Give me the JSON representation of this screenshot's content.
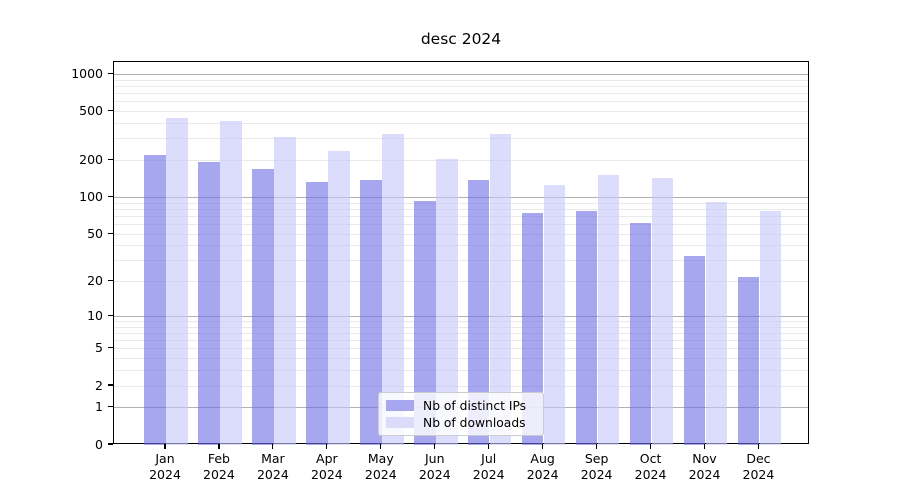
{
  "title": "desc 2024",
  "legend": {
    "items": [
      {
        "label": "Nb of distinct IPs",
        "color": "#a7a7ef"
      },
      {
        "label": "Nb of downloads",
        "color": "#dcdcfa"
      }
    ]
  },
  "chart_data": {
    "type": "bar",
    "title": "desc 2024",
    "categories": [
      "Jan",
      "Feb",
      "Mar",
      "Apr",
      "May",
      "Jun",
      "Jul",
      "Aug",
      "Sep",
      "Oct",
      "Nov",
      "Dec"
    ],
    "category_year": "2024",
    "series": [
      {
        "name": "Nb of distinct IPs",
        "color": "rgba(113,113,229,0.62)",
        "values": [
          220,
          196,
          170,
          135,
          139,
          94,
          138,
          74,
          77,
          62,
          33,
          22
        ]
      },
      {
        "name": "Nb of downloads",
        "color": "rgba(199,199,252,0.62)",
        "values": [
          445,
          420,
          308,
          240,
          330,
          205,
          330,
          126,
          152,
          145,
          92,
          78
        ]
      }
    ],
    "xlabel": "",
    "ylabel": "",
    "yscale": "log1p",
    "ylim": [
      0,
      1262
    ],
    "yticks": [
      0,
      1,
      2,
      5,
      10,
      20,
      50,
      100,
      200,
      500,
      1000
    ],
    "grid": true,
    "grid_major_decades": [
      1,
      10,
      100,
      1000
    ],
    "legend_position": "lower-center",
    "colors": {
      "major_grid": "#b0b0b0",
      "minor_grid": "#e9e9e9",
      "spine": "#000000"
    }
  }
}
